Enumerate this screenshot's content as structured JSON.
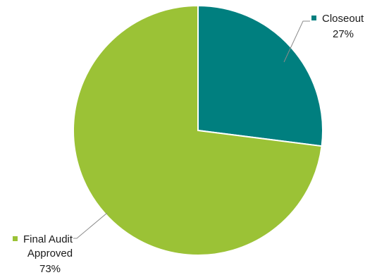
{
  "chart_data": {
    "type": "pie",
    "slices": [
      {
        "name": "Closeout",
        "value": 27,
        "label": "27%",
        "color": "#007f7f"
      },
      {
        "name": "Final Audit Approved",
        "name_lines": [
          "Final Audit",
          "Approved"
        ],
        "value": 73,
        "label": "73%",
        "color": "#9bc236"
      }
    ],
    "legend": "data-labels",
    "start_angle": "12-o-clock",
    "direction": "clockwise"
  }
}
